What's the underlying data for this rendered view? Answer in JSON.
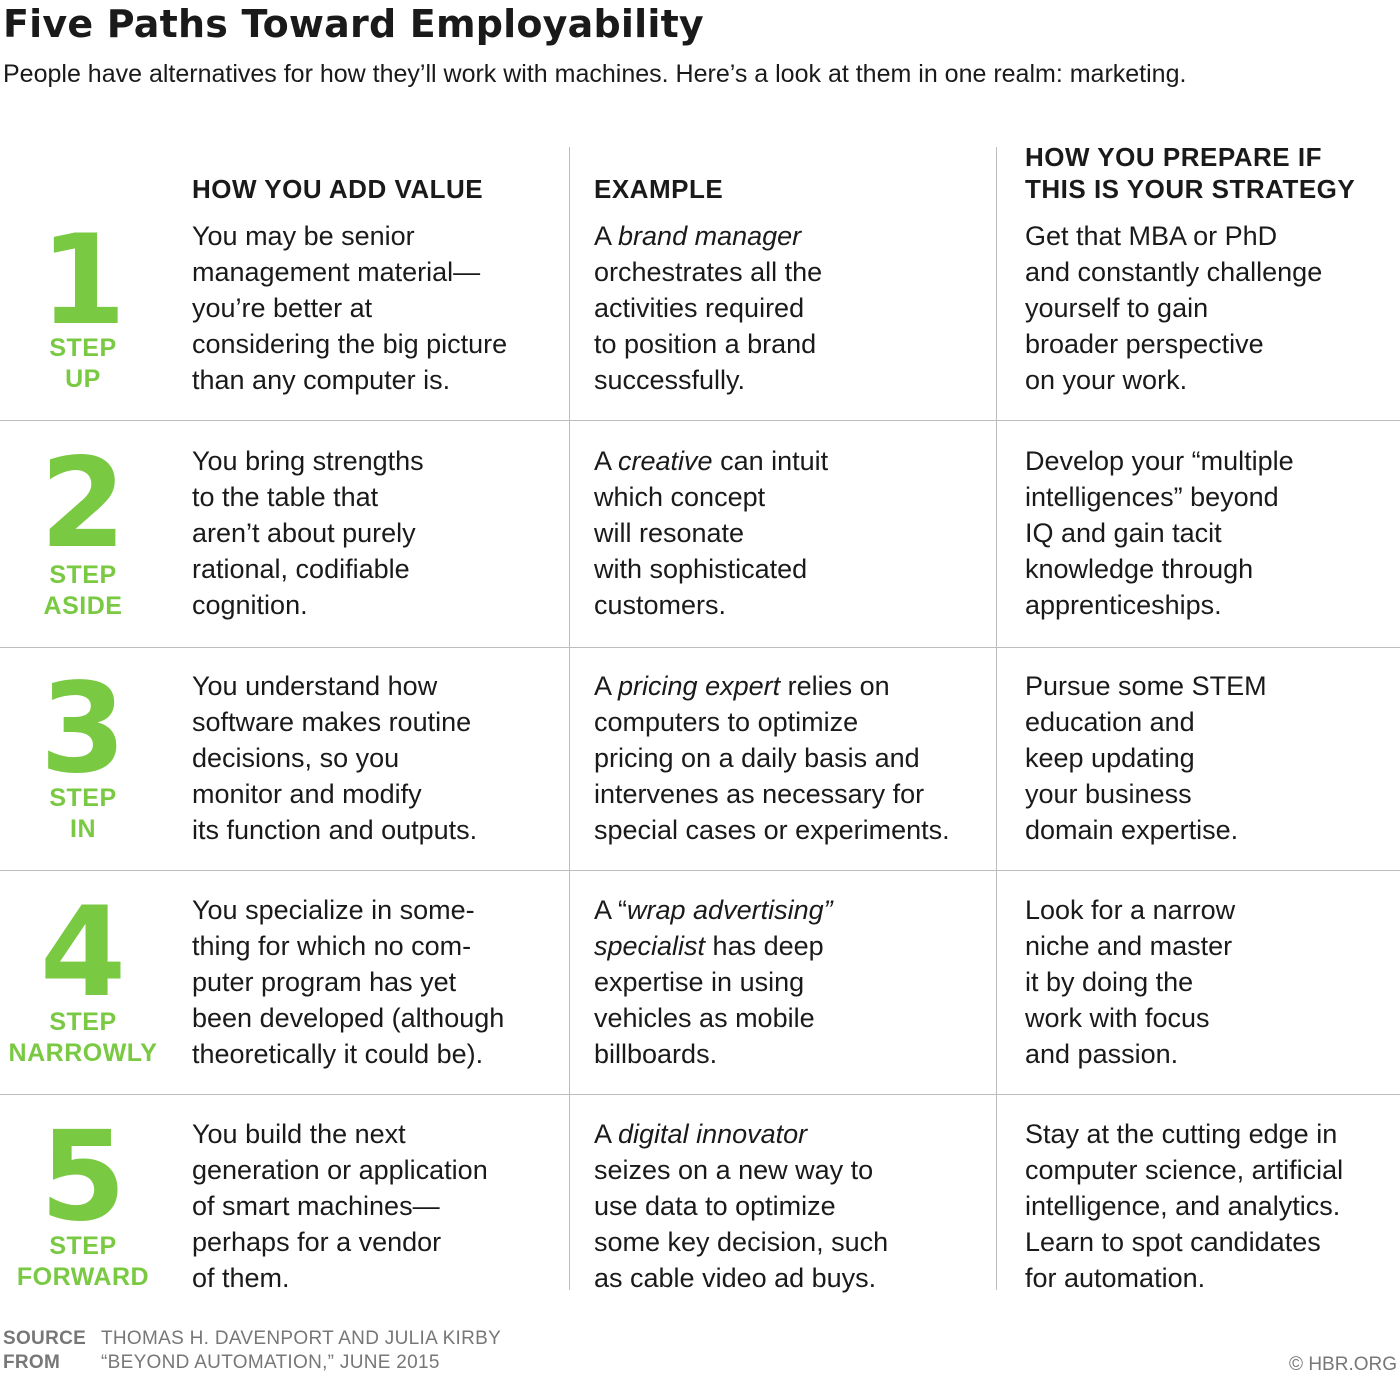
{
  "title": "Five Paths Toward Employability",
  "subtitle": "People have alternatives for how they’ll work with machines. Here’s a look at them in one realm: marketing.",
  "headers": {
    "value": "HOW YOU ADD VALUE",
    "example": "EXAMPLE",
    "prepare": "HOW YOU PREPARE IF\nTHIS IS YOUR STRATEGY"
  },
  "rows": [
    {
      "number": "1",
      "label": "STEP\nUP",
      "value": "You may be senior\nmanagement material—\nyou’re better at\nconsidering the big picture\nthan any computer is.",
      "example_pre": "A ",
      "example_em": "brand manager",
      "example_post": "\norchestrates all the\nactivities required\nto position a brand\nsuccessfully.",
      "prepare": "Get that MBA or PhD\nand constantly challenge\nyourself to gain\nbroader perspective\non your work."
    },
    {
      "number": "2",
      "label": "STEP\nASIDE",
      "value": "You bring strengths\nto the table that\naren’t about purely\nrational, codifiable\ncognition.",
      "example_pre": "A ",
      "example_em": "creative",
      "example_post": " can intuit\nwhich concept\nwill resonate\nwith sophisticated\ncustomers.",
      "prepare": "Develop your “multiple\nintelligences” beyond\nIQ and gain tacit\nknowledge through\napprenticeships."
    },
    {
      "number": "3",
      "label": "STEP\nIN",
      "value": "You understand how\nsoftware makes routine\ndecisions, so you\nmonitor and modify\nits function and outputs.",
      "example_pre": "A ",
      "example_em": "pricing expert",
      "example_post": " relies on\ncomputers to optimize\npricing on a daily basis and\nintervenes as necessary for\nspecial cases or experiments.",
      "prepare": "Pursue some STEM\neducation and\nkeep updating\nyour business\ndomain expertise."
    },
    {
      "number": "4",
      "label": "STEP\nNARROWLY",
      "value": "You specialize in some-\nthing for which no com-\nputer program has yet\nbeen developed (although\ntheoretically it could be).",
      "example_pre": "A “",
      "example_em": "wrap advertising”\nspecialist",
      "example_post": " has deep\nexpertise in using\nvehicles as mobile\nbillboards.",
      "prepare": "Look for a narrow\nniche and master\nit by doing the\nwork with focus\nand passion."
    },
    {
      "number": "5",
      "label": "STEP\nFORWARD",
      "value": "You build the next\ngeneration or application\nof smart machines—\nperhaps for a vendor\nof them.",
      "example_pre": "A ",
      "example_em": "digital innovator",
      "example_post": "\nseizes on a new way to\nuse data to optimize\nsome key decision, such\nas cable video ad buys.",
      "prepare": "Stay at the cutting edge in\ncomputer science, artificial\nintelligence, and analytics.\nLearn to spot candidates\nfor automation."
    }
  ],
  "footer": {
    "source_key": "SOURCE",
    "source_val": "THOMAS H. DAVENPORT AND JULIA KIRBY",
    "from_key": "FROM",
    "from_val": "“BEYOND AUTOMATION,” JUNE 2015",
    "copyright": "© HBR.ORG"
  },
  "colors": {
    "accent": "#7ac943",
    "text": "#1a1a1a",
    "rule": "#bdbdbd",
    "footer": "#777777"
  }
}
